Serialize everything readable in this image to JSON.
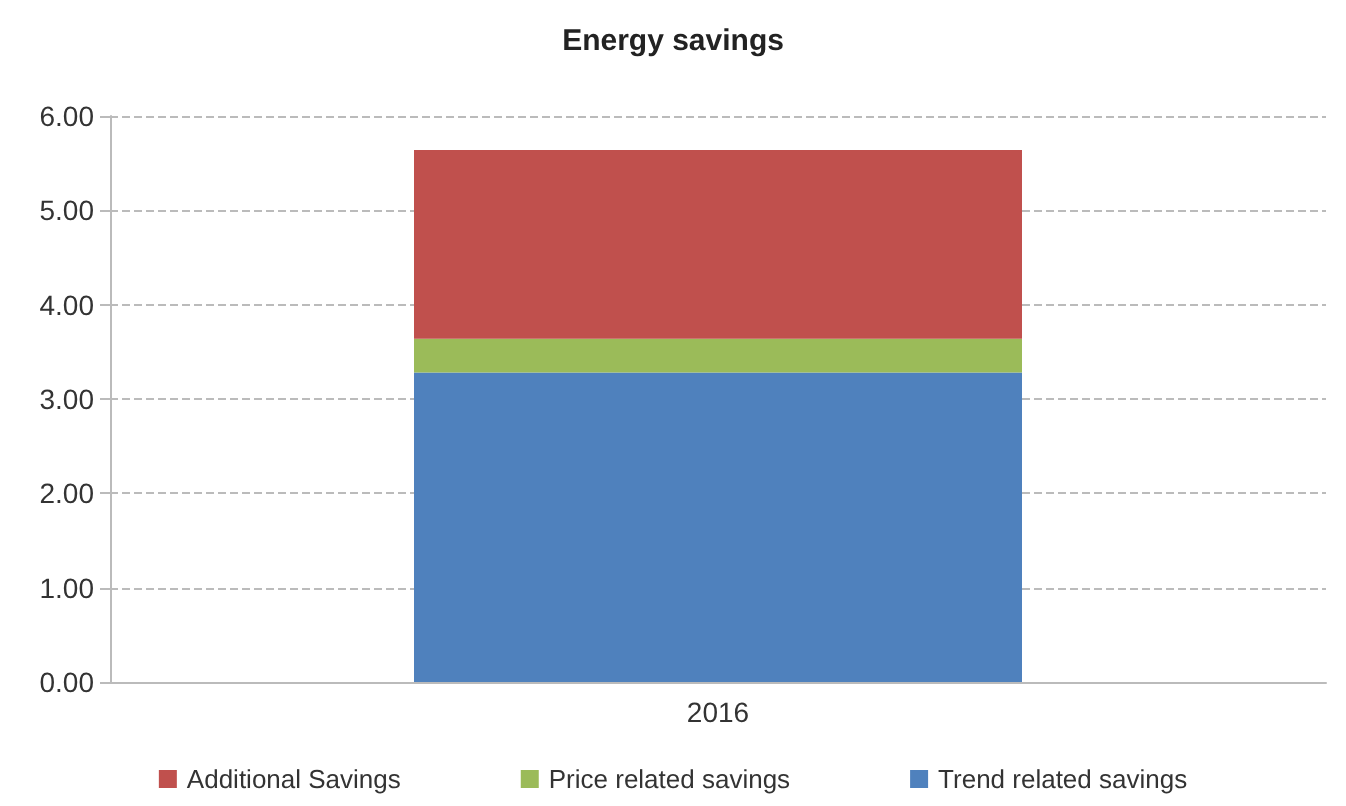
{
  "chart_data": {
    "type": "bar",
    "title": "Energy savings",
    "categories": [
      "2016"
    ],
    "stacked": true,
    "series": [
      {
        "name": "Trend related savings",
        "color": "#4f81bd",
        "values": [
          3.28
        ]
      },
      {
        "name": "Price related savings",
        "color": "#9bbb59",
        "values": [
          0.36
        ]
      },
      {
        "name": "Additional Savings",
        "color": "#c0504d",
        "values": [
          2.0
        ]
      }
    ],
    "ylim": [
      0,
      6
    ],
    "yticks": [
      {
        "value": 0,
        "label": "0.00"
      },
      {
        "value": 1,
        "label": "1.00"
      },
      {
        "value": 2,
        "label": "2.00"
      },
      {
        "value": 3,
        "label": "3.00"
      },
      {
        "value": 4,
        "label": "4.00"
      },
      {
        "value": 5,
        "label": "5.00"
      },
      {
        "value": 6,
        "label": "6.00"
      }
    ],
    "grid": "y",
    "legend": "bottom"
  }
}
